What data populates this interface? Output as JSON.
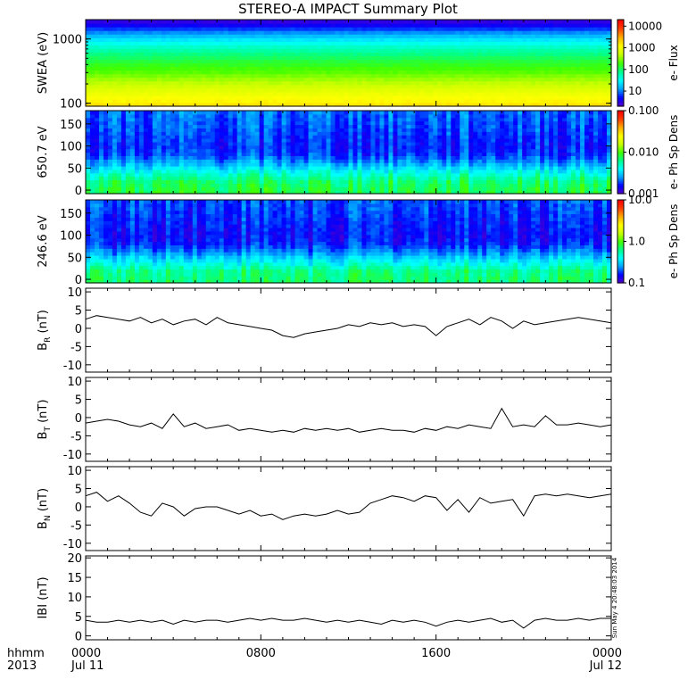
{
  "title": "STEREO-A IMPACT Summary Plot",
  "stamp": "Sun May  4 20:48:03 2014",
  "x_axis": {
    "row1_label": "hhmm",
    "row2_label": "2013",
    "ticks": [
      {
        "hour": 0,
        "time": "0000",
        "date": "Jul 11"
      },
      {
        "hour": 8,
        "time": "0800",
        "date": ""
      },
      {
        "hour": 16,
        "time": "1600",
        "date": ""
      },
      {
        "hour": 24,
        "time": "0000",
        "date": "Jul 12"
      }
    ],
    "range_hours": [
      0,
      24
    ]
  },
  "colors": {
    "spectrogram_scale": [
      "#5a00c8",
      "#0000ff",
      "#00a0ff",
      "#00ffff",
      "#00ff90",
      "#40ff00",
      "#c8ff00",
      "#ffff00",
      "#ffb000",
      "#ff4000",
      "#ff0000"
    ]
  },
  "chart_data": [
    {
      "type": "heatmap",
      "ylabel": "SWEA (eV)",
      "yscale": "log",
      "ylim": [
        90,
        2000
      ],
      "yticks": [
        {
          "v": 100,
          "label": "100"
        },
        {
          "v": 1000,
          "label": "1000"
        }
      ],
      "colorbar": {
        "label": "e- Flux",
        "scale": "log",
        "range": [
          2,
          20000
        ],
        "ticks": [
          {
            "v": 10,
            "label": "10"
          },
          {
            "v": 100,
            "label": "100"
          },
          {
            "v": 1000,
            "label": "1000"
          },
          {
            "v": 10000,
            "label": "10000"
          }
        ]
      },
      "profile": {
        "y": [
          90,
          100,
          150,
          200,
          300,
          500,
          700,
          1000,
          1300,
          1600,
          2000
        ],
        "level": [
          0.75,
          0.72,
          0.66,
          0.6,
          0.52,
          0.44,
          0.37,
          0.27,
          0.18,
          0.09,
          0.03
        ]
      }
    },
    {
      "type": "heatmap",
      "ylabel": "650.7 eV",
      "yscale": "linear",
      "ylim": [
        -8,
        180
      ],
      "yticks": [
        {
          "v": 0,
          "label": "0"
        },
        {
          "v": 50,
          "label": "50"
        },
        {
          "v": 100,
          "label": "100"
        },
        {
          "v": 150,
          "label": "150"
        }
      ],
      "colorbar": {
        "label": "e- Ph Sp Dens",
        "scale": "log",
        "range": [
          0.001,
          0.1
        ],
        "ticks": [
          {
            "v": 0.001,
            "label": "0.001"
          },
          {
            "v": 0.01,
            "label": "0.010"
          },
          {
            "v": 0.1,
            "label": "0.100"
          }
        ]
      },
      "profile": {
        "y": [
          0,
          20,
          40,
          60,
          80,
          100,
          130,
          180
        ],
        "level": [
          0.45,
          0.42,
          0.33,
          0.22,
          0.14,
          0.12,
          0.14,
          0.17
        ]
      }
    },
    {
      "type": "heatmap",
      "ylabel": "246.6 eV",
      "yscale": "linear",
      "ylim": [
        -8,
        180
      ],
      "yticks": [
        {
          "v": 0,
          "label": "0"
        },
        {
          "v": 50,
          "label": "50"
        },
        {
          "v": 100,
          "label": "100"
        },
        {
          "v": 150,
          "label": "150"
        }
      ],
      "colorbar": {
        "label": "e- Ph Sp Dens",
        "scale": "log",
        "range": [
          0.1,
          10
        ],
        "ticks": [
          {
            "v": 0.1,
            "label": "0.1"
          },
          {
            "v": 1,
            "label": "1.0"
          },
          {
            "v": 10,
            "label": "10.0"
          }
        ]
      },
      "profile": {
        "y": [
          0,
          20,
          40,
          60,
          80,
          100,
          130,
          180
        ],
        "level": [
          0.42,
          0.4,
          0.3,
          0.2,
          0.12,
          0.1,
          0.12,
          0.15
        ]
      }
    },
    {
      "type": "line",
      "ylabel": "B",
      "ylabel_sub": "R",
      "ylabel_unit": "(nT)",
      "ylim": [
        -12,
        11
      ],
      "yticks": [
        {
          "v": -10,
          "label": "-10"
        },
        {
          "v": -5,
          "label": "-5"
        },
        {
          "v": 0,
          "label": "0"
        },
        {
          "v": 5,
          "label": "5"
        },
        {
          "v": 10,
          "label": "10"
        }
      ],
      "x": [
        0,
        0.5,
        1,
        1.5,
        2,
        2.5,
        3,
        3.5,
        4,
        4.5,
        5,
        5.5,
        6,
        6.5,
        7,
        7.5,
        8,
        8.5,
        9,
        9.5,
        10,
        10.5,
        11,
        11.5,
        12,
        12.5,
        13,
        13.5,
        14,
        14.5,
        15,
        15.5,
        16,
        16.5,
        17,
        17.5,
        18,
        18.5,
        19,
        19.5,
        20,
        20.5,
        21,
        21.5,
        22,
        22.5,
        23,
        23.5,
        24
      ],
      "y": [
        2.5,
        3.5,
        3,
        2.5,
        2,
        3,
        1.5,
        2.5,
        1,
        2,
        2.5,
        1,
        3,
        1.5,
        1,
        0.5,
        0,
        -0.5,
        -2,
        -2.5,
        -1.5,
        -1,
        -0.5,
        0,
        1,
        0.5,
        1.5,
        1,
        1.5,
        0.5,
        1,
        0.5,
        -2,
        0.5,
        1.5,
        2.5,
        1,
        3,
        2,
        0,
        2,
        1,
        1.5,
        2,
        2.5,
        3,
        2.5,
        2,
        1.5
      ]
    },
    {
      "type": "line",
      "ylabel": "B",
      "ylabel_sub": "T",
      "ylabel_unit": "(nT)",
      "ylim": [
        -12,
        11
      ],
      "yticks": [
        {
          "v": -10,
          "label": "-10"
        },
        {
          "v": -5,
          "label": "-5"
        },
        {
          "v": 0,
          "label": "0"
        },
        {
          "v": 5,
          "label": "5"
        },
        {
          "v": 10,
          "label": "10"
        }
      ],
      "x": [
        0,
        0.5,
        1,
        1.5,
        2,
        2.5,
        3,
        3.5,
        4,
        4.5,
        5,
        5.5,
        6,
        6.5,
        7,
        7.5,
        8,
        8.5,
        9,
        9.5,
        10,
        10.5,
        11,
        11.5,
        12,
        12.5,
        13,
        13.5,
        14,
        14.5,
        15,
        15.5,
        16,
        16.5,
        17,
        17.5,
        18,
        18.5,
        19,
        19.5,
        20,
        20.5,
        21,
        21.5,
        22,
        22.5,
        23,
        23.5,
        24
      ],
      "y": [
        -1.5,
        -1,
        -0.5,
        -1,
        -2,
        -2.5,
        -1.5,
        -3,
        1,
        -2.5,
        -1.5,
        -3,
        -2.5,
        -2,
        -3.5,
        -3,
        -3.5,
        -4,
        -3.5,
        -4,
        -3,
        -3.5,
        -3,
        -3.5,
        -3,
        -4,
        -3.5,
        -3,
        -3.5,
        -3.5,
        -4,
        -3,
        -3.5,
        -2.5,
        -3,
        -2,
        -2.5,
        -3,
        2.5,
        -2.5,
        -2,
        -2.5,
        0.5,
        -2,
        -2,
        -1.5,
        -2,
        -2.5,
        -2
      ]
    },
    {
      "type": "line",
      "ylabel": "B",
      "ylabel_sub": "N",
      "ylabel_unit": "(nT)",
      "ylim": [
        -12,
        11
      ],
      "yticks": [
        {
          "v": -10,
          "label": "-10"
        },
        {
          "v": -5,
          "label": "-5"
        },
        {
          "v": 0,
          "label": "0"
        },
        {
          "v": 5,
          "label": "5"
        },
        {
          "v": 10,
          "label": "10"
        }
      ],
      "x": [
        0,
        0.5,
        1,
        1.5,
        2,
        2.5,
        3,
        3.5,
        4,
        4.5,
        5,
        5.5,
        6,
        6.5,
        7,
        7.5,
        8,
        8.5,
        9,
        9.5,
        10,
        10.5,
        11,
        11.5,
        12,
        12.5,
        13,
        13.5,
        14,
        14.5,
        15,
        15.5,
        16,
        16.5,
        17,
        17.5,
        18,
        18.5,
        19,
        19.5,
        20,
        20.5,
        21,
        21.5,
        22,
        22.5,
        23,
        23.5,
        24
      ],
      "y": [
        3,
        4,
        1.5,
        3,
        1,
        -1.5,
        -2.5,
        1,
        0,
        -2.5,
        -0.5,
        0,
        0,
        -1,
        -2,
        -1,
        -2.5,
        -2,
        -3.5,
        -2.5,
        -2,
        -2.5,
        -2,
        -1,
        -2,
        -1.5,
        1,
        2,
        3,
        2.5,
        1.5,
        3,
        2.5,
        -1,
        2,
        -1.5,
        2.5,
        1,
        1.5,
        2,
        -2.5,
        3,
        3.5,
        3,
        3.5,
        3,
        2.5,
        3,
        3.5
      ]
    },
    {
      "type": "line",
      "ylabel": "IBI",
      "ylabel_sub": "",
      "ylabel_unit": "(nT)",
      "ylim": [
        -1,
        20.5
      ],
      "yticks": [
        {
          "v": 0,
          "label": "0"
        },
        {
          "v": 5,
          "label": "5"
        },
        {
          "v": 10,
          "label": "10"
        },
        {
          "v": 15,
          "label": "15"
        },
        {
          "v": 20,
          "label": "20"
        }
      ],
      "x": [
        0,
        0.5,
        1,
        1.5,
        2,
        2.5,
        3,
        3.5,
        4,
        4.5,
        5,
        5.5,
        6,
        6.5,
        7,
        7.5,
        8,
        8.5,
        9,
        9.5,
        10,
        10.5,
        11,
        11.5,
        12,
        12.5,
        13,
        13.5,
        14,
        14.5,
        15,
        15.5,
        16,
        16.5,
        17,
        17.5,
        18,
        18.5,
        19,
        19.5,
        20,
        20.5,
        21,
        21.5,
        22,
        22.5,
        23,
        23.5,
        24
      ],
      "y": [
        4,
        3.5,
        3.5,
        4,
        3.5,
        4,
        3.5,
        4,
        3,
        4,
        3.5,
        4,
        4,
        3.5,
        4,
        4.5,
        4,
        4.5,
        4,
        4,
        4.5,
        4,
        3.5,
        4,
        3.5,
        4,
        3.5,
        3,
        4,
        3.5,
        4,
        3.5,
        2.5,
        3.5,
        4,
        3.5,
        4,
        4.5,
        3.5,
        4,
        2,
        4,
        4.5,
        4,
        4,
        4.5,
        4,
        4.5,
        4.5
      ]
    }
  ]
}
